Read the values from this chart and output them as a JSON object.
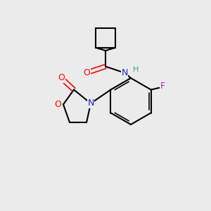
{
  "background_color": "#ebebeb",
  "bond_color": "#000000",
  "bond_lw": 1.5,
  "atom_colors": {
    "O": "#ff0000",
    "N": "#2222cc",
    "F": "#993399",
    "H": "#4a9a8a",
    "C": "#000000"
  },
  "font_size": 9,
  "font_size_small": 8
}
